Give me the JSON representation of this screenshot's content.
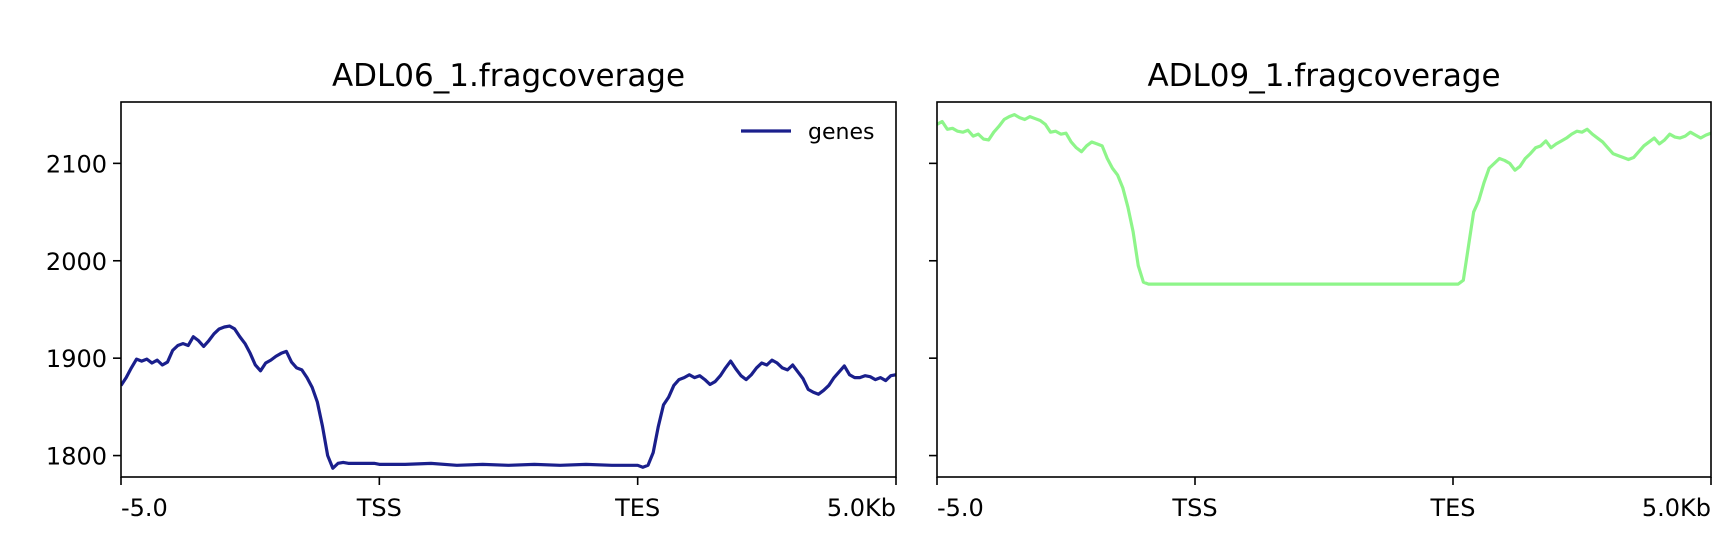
{
  "chart_data": [
    {
      "type": "line",
      "title": "ADL06_1.fragcoverage",
      "xlabel": "",
      "ylabel": "",
      "x_tick_labels": [
        "-5.0",
        "TSS",
        "TES",
        "5.0Kb"
      ],
      "y_ticks": [
        1800,
        1900,
        2000,
        2100
      ],
      "y_tick_labels": [
        "1800",
        "1900",
        "2000",
        "2100"
      ],
      "ylim": [
        1778,
        2163
      ],
      "legend": {
        "show": true,
        "position": "top-right"
      },
      "grid": false,
      "series": [
        {
          "name": "genes",
          "color": "#1a1f8c",
          "x": [
            0,
            0.02,
            0.04,
            0.06,
            0.08,
            0.1,
            0.12,
            0.14,
            0.16,
            0.18,
            0.2,
            0.22,
            0.24,
            0.26,
            0.28,
            0.3,
            0.32,
            0.34,
            0.36,
            0.38,
            0.4,
            0.42,
            0.44,
            0.46,
            0.48,
            0.5,
            0.52,
            0.54,
            0.56,
            0.58,
            0.6,
            0.62,
            0.64,
            0.66,
            0.68,
            0.7,
            0.72,
            0.74,
            0.76,
            0.78,
            0.8,
            0.82,
            0.84,
            0.86,
            0.88,
            0.9,
            0.92,
            0.94,
            0.96,
            0.98,
            1,
            1.1,
            1.2,
            1.3,
            1.4,
            1.5,
            1.6,
            1.7,
            1.8,
            1.9,
            2,
            2.02,
            2.04,
            2.06,
            2.08,
            2.1,
            2.12,
            2.14,
            2.16,
            2.18,
            2.2,
            2.22,
            2.24,
            2.26,
            2.28,
            2.3,
            2.32,
            2.34,
            2.36,
            2.38,
            2.4,
            2.42,
            2.44,
            2.46,
            2.48,
            2.5,
            2.52,
            2.54,
            2.56,
            2.58,
            2.6,
            2.62,
            2.64,
            2.66,
            2.68,
            2.7,
            2.72,
            2.74,
            2.76,
            2.78,
            2.8,
            2.82,
            2.84,
            2.86,
            2.88,
            2.9,
            2.92,
            2.94,
            2.96,
            2.98,
            3
          ],
          "values": [
            1872,
            1880,
            1890,
            1899,
            1897,
            1899,
            1895,
            1898,
            1893,
            1896,
            1908,
            1913,
            1915,
            1913,
            1922,
            1918,
            1912,
            1918,
            1925,
            1930,
            1932,
            1933,
            1930,
            1922,
            1915,
            1905,
            1893,
            1887,
            1895,
            1898,
            1902,
            1905,
            1907,
            1896,
            1890,
            1888,
            1880,
            1870,
            1855,
            1830,
            1800,
            1787,
            1792,
            1793,
            1792,
            1792,
            1792,
            1792,
            1792,
            1792,
            1791,
            1791,
            1792,
            1790,
            1791,
            1790,
            1791,
            1790,
            1791,
            1790,
            1790,
            1788,
            1790,
            1803,
            1830,
            1852,
            1860,
            1872,
            1878,
            1880,
            1883,
            1880,
            1882,
            1878,
            1873,
            1876,
            1882,
            1890,
            1897,
            1889,
            1882,
            1878,
            1883,
            1890,
            1895,
            1893,
            1898,
            1895,
            1890,
            1888,
            1893,
            1886,
            1879,
            1868,
            1865,
            1863,
            1867,
            1872,
            1880,
            1886,
            1892,
            1883,
            1880,
            1880,
            1882,
            1881,
            1878,
            1880,
            1877,
            1882,
            1883
          ]
        }
      ]
    },
    {
      "type": "line",
      "title": "ADL09_1.fragcoverage",
      "xlabel": "",
      "ylabel": "",
      "x_tick_labels": [
        "-5.0",
        "TSS",
        "TES",
        "5.0Kb"
      ],
      "y_ticks": [
        1800,
        1900,
        2000,
        2100
      ],
      "y_tick_labels": [],
      "ylim": [
        1778,
        2163
      ],
      "legend": {
        "show": false
      },
      "grid": false,
      "series": [
        {
          "color": "#8ef58a",
          "x": [
            0,
            0.02,
            0.04,
            0.06,
            0.08,
            0.1,
            0.12,
            0.14,
            0.16,
            0.18,
            0.2,
            0.22,
            0.24,
            0.26,
            0.28,
            0.3,
            0.32,
            0.34,
            0.36,
            0.38,
            0.4,
            0.42,
            0.44,
            0.46,
            0.48,
            0.5,
            0.52,
            0.54,
            0.56,
            0.58,
            0.6,
            0.62,
            0.64,
            0.66,
            0.68,
            0.7,
            0.72,
            0.74,
            0.76,
            0.78,
            0.8,
            0.82,
            0.84,
            0.86,
            0.88,
            0.9,
            0.92,
            0.94,
            0.96,
            0.98,
            1,
            1.1,
            1.2,
            1.3,
            1.4,
            1.5,
            1.6,
            1.7,
            1.8,
            1.9,
            2,
            2.02,
            2.04,
            2.06,
            2.08,
            2.1,
            2.12,
            2.14,
            2.16,
            2.18,
            2.2,
            2.22,
            2.24,
            2.26,
            2.28,
            2.3,
            2.32,
            2.34,
            2.36,
            2.38,
            2.4,
            2.42,
            2.44,
            2.46,
            2.48,
            2.5,
            2.52,
            2.54,
            2.56,
            2.58,
            2.6,
            2.62,
            2.64,
            2.66,
            2.68,
            2.7,
            2.72,
            2.74,
            2.76,
            2.78,
            2.8,
            2.82,
            2.84,
            2.86,
            2.88,
            2.9,
            2.92,
            2.94,
            2.96,
            2.98,
            3
          ],
          "values": [
            2140,
            2143,
            2135,
            2136,
            2133,
            2132,
            2134,
            2128,
            2130,
            2125,
            2124,
            2132,
            2138,
            2145,
            2148,
            2150,
            2147,
            2145,
            2148,
            2146,
            2144,
            2140,
            2132,
            2133,
            2130,
            2131,
            2122,
            2116,
            2112,
            2118,
            2122,
            2120,
            2118,
            2105,
            2095,
            2088,
            2075,
            2055,
            2030,
            1995,
            1978,
            1976,
            1976,
            1976,
            1976,
            1976,
            1976,
            1976,
            1976,
            1976,
            1976,
            1976,
            1976,
            1976,
            1976,
            1976,
            1976,
            1976,
            1976,
            1976,
            1976,
            1976,
            1980,
            2015,
            2050,
            2062,
            2080,
            2095,
            2100,
            2105,
            2103,
            2100,
            2093,
            2097,
            2105,
            2110,
            2116,
            2118,
            2123,
            2116,
            2120,
            2123,
            2126,
            2130,
            2133,
            2132,
            2135,
            2130,
            2126,
            2122,
            2116,
            2110,
            2108,
            2106,
            2104,
            2106,
            2112,
            2118,
            2122,
            2126,
            2120,
            2124,
            2130,
            2127,
            2126,
            2128,
            2132,
            2129,
            2126,
            2129,
            2131
          ]
        }
      ]
    }
  ]
}
